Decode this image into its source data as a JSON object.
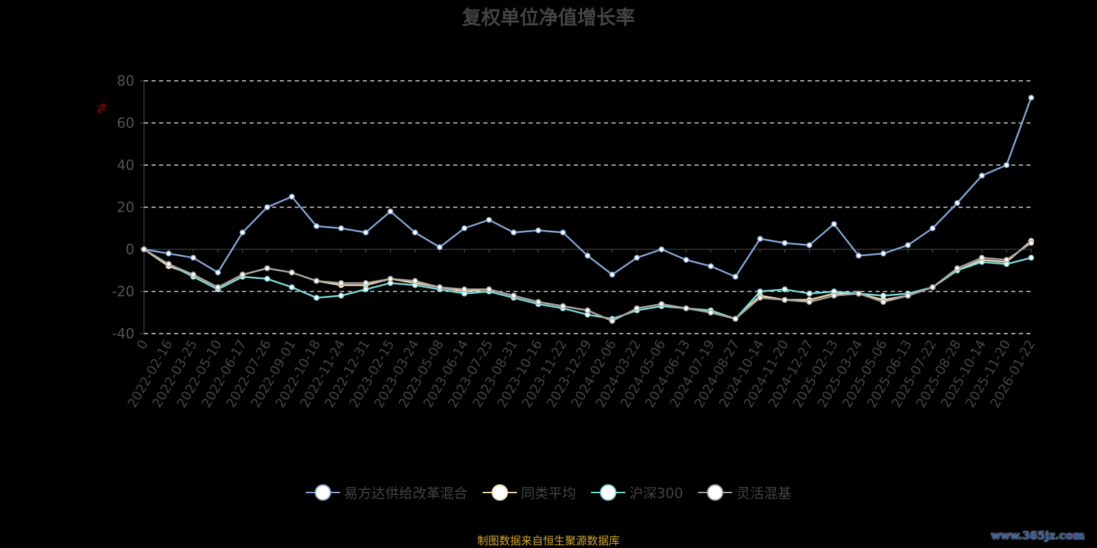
{
  "title": "复权单位净值增长率",
  "source": "制图数据来自恒生聚源数据库",
  "watermark": "www.365jz.com",
  "chart_data": {
    "type": "line",
    "title": "复权单位净值增长率",
    "ylabel": "%",
    "ylim": [
      -40,
      80
    ],
    "yticks": [
      80,
      60,
      40,
      20,
      0,
      -20,
      -40
    ],
    "grid": true,
    "legend": "bottom",
    "categories": [
      "0",
      "2022-02-16",
      "2022-03-25",
      "2022-05-10",
      "2022-06-17",
      "2022-07-26",
      "2022-09-01",
      "2022-10-18",
      "2022-11-24",
      "2022-12-31",
      "2023-02-15",
      "2023-03-24",
      "2023-05-08",
      "2023-06-14",
      "2023-07-25",
      "2023-08-31",
      "2023-10-16",
      "2023-11-22",
      "2023-12-29",
      "2024-02-06",
      "2024-03-22",
      "2024-05-06",
      "2024-06-13",
      "2024-07-19",
      "2024-08-27",
      "2024-10-14",
      "2024-11-20",
      "2024-12-27",
      "2025-02-13",
      "2025-03-24",
      "2025-05-06",
      "2025-06-13",
      "2025-07-22",
      "2025-08-28",
      "2025-10-14",
      "2025-11-20",
      "2026-01-22"
    ],
    "series": [
      {
        "name": "易方达供给改革混合",
        "color": "#86a8d8",
        "values": [
          0,
          -2,
          -4,
          -11,
          8,
          20,
          25,
          11,
          10,
          8,
          18,
          8,
          1,
          10,
          14,
          8,
          9,
          8,
          -3,
          -12,
          -4,
          0,
          -5,
          -8,
          -13,
          5,
          3,
          2,
          12,
          -3,
          -2,
          2,
          10,
          22,
          35,
          40,
          72
        ]
      },
      {
        "name": "同类平均",
        "color": "#f3dcb0",
        "values": [
          0,
          -8,
          -12,
          -18,
          -12,
          -9,
          -11,
          -15,
          -17,
          -17,
          -14,
          -16,
          -18,
          -20,
          -19,
          -22,
          -25,
          -27,
          -29,
          -34,
          -28,
          -26,
          -28,
          -30,
          -33,
          -22,
          -24,
          -24,
          -21,
          -21,
          -24,
          -22,
          -18,
          -10,
          -5,
          -6,
          4
        ]
      },
      {
        "name": "沪深300",
        "color": "#7fdcdc",
        "values": [
          0,
          -7,
          -13,
          -19,
          -13,
          -14,
          -18,
          -23,
          -22,
          -19,
          -16,
          -17,
          -19,
          -21,
          -20,
          -23,
          -26,
          -28,
          -31,
          -33,
          -29,
          -27,
          -28,
          -29,
          -33,
          -20,
          -19,
          -21,
          -20,
          -21,
          -22,
          -21,
          -18,
          -10,
          -6,
          -7,
          -4
        ]
      },
      {
        "name": "灵活混基",
        "color": "#a8a4a0",
        "values": [
          0,
          -7,
          -12,
          -18,
          -12,
          -9,
          -11,
          -15,
          -16,
          -16,
          -14,
          -15,
          -18,
          -19,
          -19,
          -22,
          -25,
          -27,
          -29,
          -34,
          -28,
          -26,
          -28,
          -30,
          -33,
          -23,
          -24,
          -25,
          -22,
          -21,
          -25,
          -22,
          -18,
          -9,
          -4,
          -5,
          3
        ]
      }
    ]
  }
}
